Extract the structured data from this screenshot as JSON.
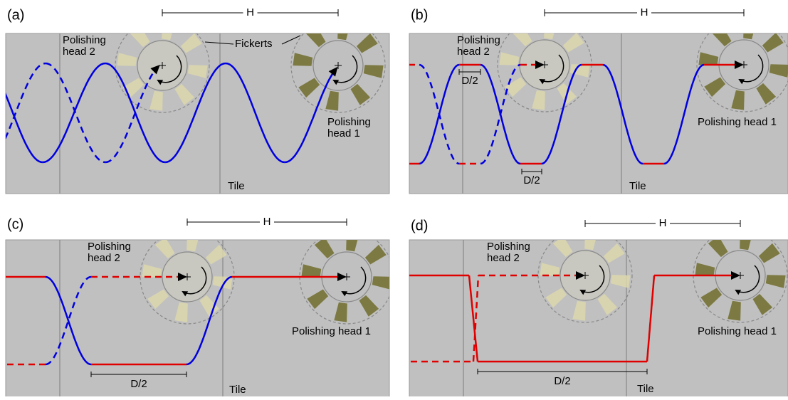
{
  "panels": [
    {
      "label": "(a)",
      "dimension": "H",
      "head_2": [
        "Polishing",
        "head 2"
      ],
      "fickerts": "Fickerts",
      "head_1": [
        "Polishing",
        "head 1"
      ],
      "tile": "Tile",
      "d_half": []
    },
    {
      "label": "(b)",
      "dimension": "H",
      "head_2": [
        "Polishing",
        "head 2"
      ],
      "head_1": [
        "Polishing head 1"
      ],
      "tile": "Tile",
      "d_half": [
        "D/2",
        "D/2"
      ]
    },
    {
      "label": "(c)",
      "dimension": "H",
      "head_2": [
        "Polishing",
        "head 2"
      ],
      "head_1": [
        "Polishing head 1"
      ],
      "tile": "Tile",
      "d_half": [
        "D/2"
      ]
    },
    {
      "label": "(d)",
      "dimension": "H",
      "head_2": [
        "Polishing",
        "head 2"
      ],
      "head_1": [
        "Polishing head 1"
      ],
      "tile": "Tile",
      "d_half": [
        "D/2"
      ]
    }
  ]
}
